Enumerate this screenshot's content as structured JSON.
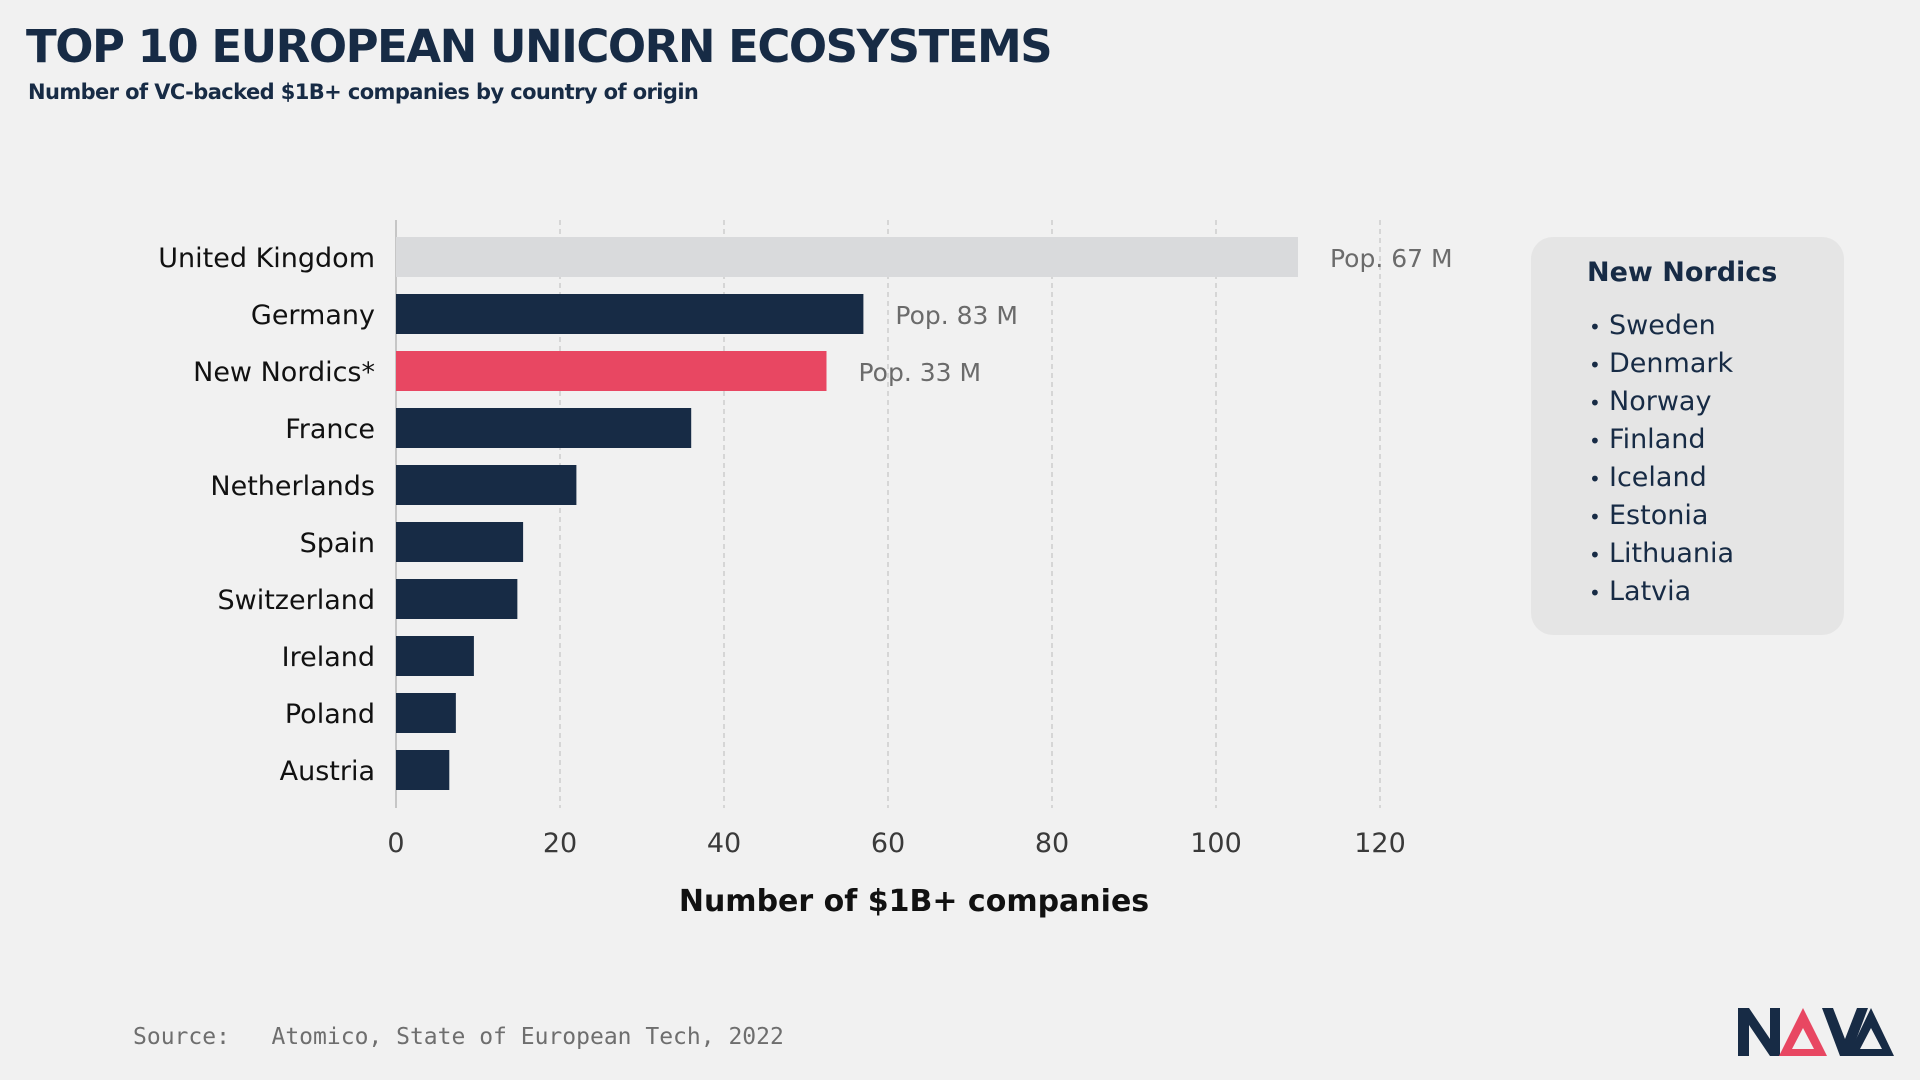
{
  "header": {
    "title": "TOP 10 EUROPEAN UNICORN ECOSYSTEMS",
    "subtitle": "Number of VC-backed $1B+ companies by country of origin"
  },
  "chart_data": {
    "type": "bar",
    "orientation": "horizontal",
    "categories": [
      "United Kingdom",
      "Germany",
      "New Nordics*",
      "France",
      "Netherlands",
      "Spain",
      "Switzerland",
      "Ireland",
      "Poland",
      "Austria"
    ],
    "values": [
      110,
      57,
      52.5,
      36,
      22,
      15.5,
      14.8,
      9.5,
      7.3,
      6.5
    ],
    "bar_colors": [
      "#d9dadc",
      "#172b45",
      "#e84762",
      "#172b45",
      "#172b45",
      "#172b45",
      "#172b45",
      "#172b45",
      "#172b45",
      "#172b45"
    ],
    "annotations": [
      {
        "category": "United Kingdom",
        "text": "Pop. 67 M"
      },
      {
        "category": "Germany",
        "text": "Pop. 83 M"
      },
      {
        "category": "New Nordics*",
        "text": "Pop. 33 M"
      }
    ],
    "xlabel": "Number of $1B+ companies",
    "ylabel": "",
    "xlim": [
      0,
      120
    ],
    "xticks": [
      "0",
      "20",
      "40",
      "60",
      "80",
      "100",
      "120"
    ],
    "grid": "vertical dashed",
    "colors": {
      "default": "#172b45",
      "highlight": "#e84762",
      "muted": "#d9dadc",
      "annotation": "#6b6b6b",
      "grid": "#bcbcbc"
    }
  },
  "nordics_box": {
    "title": "New Nordics",
    "bullet": "•",
    "items": [
      "Sweden",
      "Denmark",
      "Norway",
      "Finland",
      "Iceland",
      "Estonia",
      "Lithuania",
      "Latvia"
    ]
  },
  "footer": {
    "source_label": "Source:",
    "source_text": "Atomico, State of European Tech, 2022",
    "logo_text": "NAVA",
    "logo_colors": {
      "dark": "#172b45",
      "accent": "#e84762"
    }
  }
}
